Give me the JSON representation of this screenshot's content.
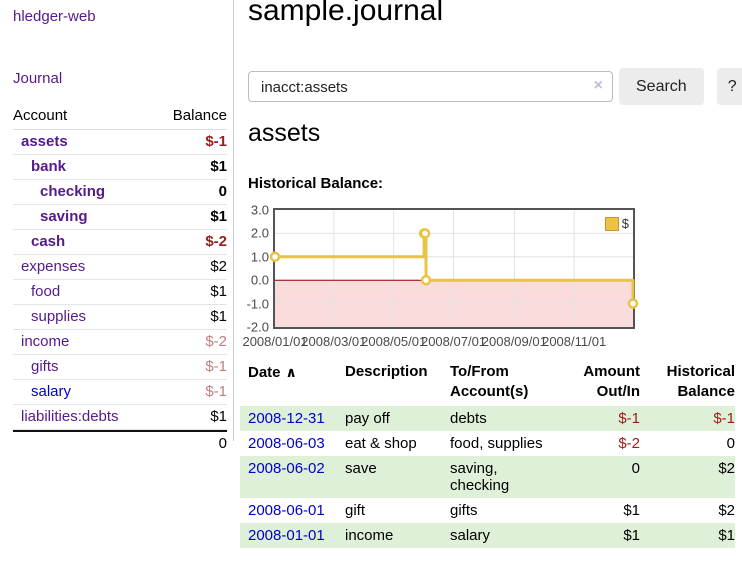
{
  "sidebar": {
    "app_title": "hledger-web",
    "journal_link": "Journal",
    "accounts": {
      "col_account": "Account",
      "col_balance": "Balance",
      "rows": [
        {
          "name": "assets",
          "depth": 1,
          "strong": true,
          "balance": "$-1",
          "neg": "strong"
        },
        {
          "name": "bank",
          "depth": 2,
          "strong": true,
          "balance": "$1",
          "neg": "none"
        },
        {
          "name": "checking",
          "depth": 3,
          "strong": true,
          "balance": "0",
          "neg": "none"
        },
        {
          "name": "saving",
          "depth": 3,
          "strong": true,
          "balance": "$1",
          "neg": "none"
        },
        {
          "name": "cash",
          "depth": 2,
          "strong": true,
          "balance": "$-2",
          "neg": "strong"
        },
        {
          "name": "expenses",
          "depth": 1,
          "strong": false,
          "balance": "$2",
          "neg": "none"
        },
        {
          "name": "food",
          "depth": 2,
          "strong": false,
          "balance": "$1",
          "neg": "none"
        },
        {
          "name": "supplies",
          "depth": 2,
          "strong": false,
          "balance": "$1",
          "neg": "none"
        },
        {
          "name": "income",
          "depth": 1,
          "strong": false,
          "balance": "$-2",
          "neg": "muted"
        },
        {
          "name": "gifts",
          "depth": 2,
          "strong": false,
          "balance": "$-1",
          "neg": "muted"
        },
        {
          "name": "salary",
          "depth": 2,
          "strong": false,
          "balance": "$-1",
          "neg": "muted",
          "unvisited": true
        },
        {
          "name": "liabilities:debts",
          "depth": 1,
          "strong": false,
          "balance": "$1",
          "neg": "none"
        }
      ],
      "total": "0"
    }
  },
  "main": {
    "title": "sample.journal",
    "search": {
      "value": "inacct:assets",
      "clear_icon": "×",
      "button_label": "Search",
      "help_label": "?"
    },
    "account_heading": "assets",
    "chart_heading": "Historical Balance:",
    "register": {
      "sort_arrow": "∧",
      "headers": [
        "Date",
        "Description",
        "To/From Account(s)",
        "Amount Out/In",
        "Historical Balance"
      ],
      "rows": [
        {
          "date": "2008-12-31",
          "description": "pay off",
          "accounts": "debts",
          "amount": "$-1",
          "amount_neg": true,
          "balance": "$-1",
          "balance_neg": true,
          "shaded": true
        },
        {
          "date": "2008-06-03",
          "description": "eat & shop",
          "accounts": "food, supplies",
          "amount": "$-2",
          "amount_neg": true,
          "balance": "0",
          "balance_neg": false,
          "shaded": false
        },
        {
          "date": "2008-06-02",
          "description": "save",
          "accounts": "saving, checking",
          "amount": "0",
          "amount_neg": false,
          "balance": "$2",
          "balance_neg": false,
          "shaded": true
        },
        {
          "date": "2008-06-01",
          "description": "gift",
          "accounts": "gifts",
          "amount": "$1",
          "amount_neg": false,
          "balance": "$2",
          "balance_neg": false,
          "shaded": false
        },
        {
          "date": "2008-01-01",
          "description": "income",
          "accounts": "salary",
          "amount": "$1",
          "amount_neg": false,
          "balance": "$1",
          "balance_neg": false,
          "shaded": true
        }
      ]
    }
  },
  "chart_data": {
    "type": "line",
    "step": true,
    "title": "Historical Balance:",
    "series": [
      {
        "name": "$",
        "points": [
          [
            "2008-01-01",
            1
          ],
          [
            "2008-06-01",
            2
          ],
          [
            "2008-06-02",
            2
          ],
          [
            "2008-06-03",
            0
          ],
          [
            "2008-12-31",
            -1
          ]
        ]
      }
    ],
    "xlim": [
      "2008-01-01",
      "2008-12-31"
    ],
    "ylim": [
      -2,
      3
    ],
    "x_tick_labels": [
      "2008/01/01",
      "2008/03/01",
      "2008/05/01",
      "2008/07/01",
      "2008/09/01",
      "2008/11/01"
    ],
    "y_tick_labels": [
      "3.0",
      "2.0",
      "1.0",
      "0.0",
      "-1.0",
      "-2.0"
    ],
    "y_tick_values": [
      3,
      2,
      1,
      0,
      -1,
      -2
    ],
    "legend": {
      "label": "$",
      "position": "top-right"
    },
    "grid": true,
    "colors": {
      "line": "#e8c344",
      "marker_fill": "#ffffff",
      "negative_fill": "#fadcdc",
      "zero_line": "#8b0000",
      "grid": "#e3e3e3",
      "border": "#545454"
    }
  },
  "colors": {
    "link_purple": "#551a8b",
    "link_blue": "#0000cc",
    "negative_strong": "#9b1c1c",
    "negative_muted": "#c07f7f",
    "row_stripe_green": "#dff0d8",
    "button_bg": "#ececec"
  }
}
